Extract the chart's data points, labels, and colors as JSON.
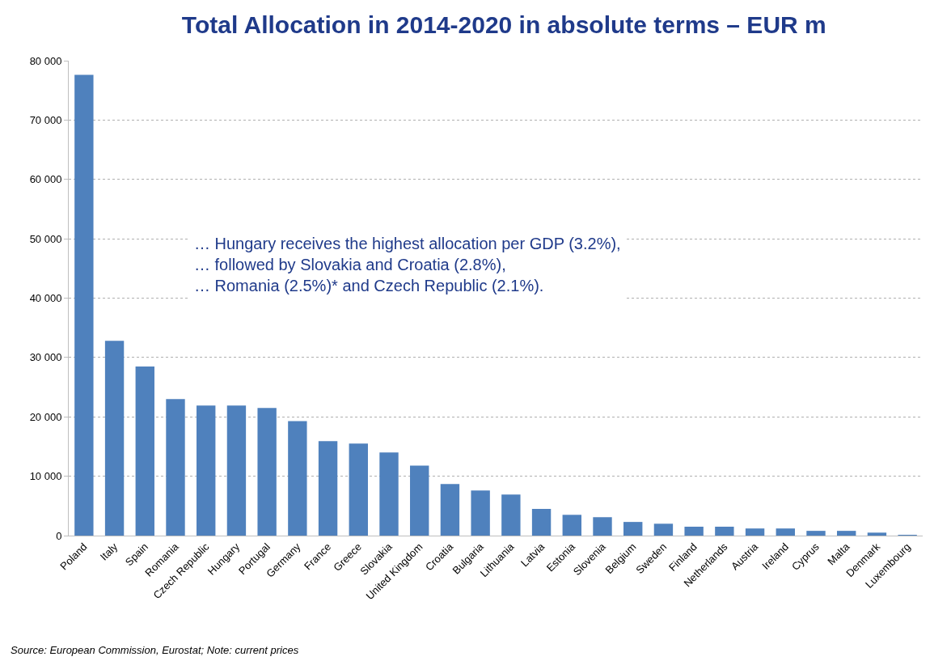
{
  "chart_data": {
    "type": "bar",
    "title": "Total Allocation in 2014-2020 in absolute terms – EUR m",
    "categories": [
      "Poland",
      "Italy",
      "Spain",
      "Romania",
      "Czech Republic",
      "Hungary",
      "Portugal",
      "Germany",
      "France",
      "Greece",
      "Slovakia",
      "United Kingdom",
      "Croatia",
      "Bulgaria",
      "Lithuania",
      "Latvia",
      "Estonia",
      "Slovenia",
      "Belgium",
      "Sweden",
      "Finland",
      "Netherlands",
      "Austria",
      "Ireland",
      "Cyprus",
      "Malta",
      "Denmark",
      "Luxembourg"
    ],
    "values": [
      77600,
      32800,
      28500,
      23000,
      21900,
      21900,
      21500,
      19300,
      15900,
      15500,
      14000,
      11800,
      8700,
      7600,
      6900,
      4500,
      3500,
      3100,
      2300,
      2000,
      1500,
      1500,
      1200,
      1200,
      800,
      800,
      500,
      100
    ],
    "color": "#4f81bd",
    "ylim": [
      0,
      80000
    ],
    "yticks": [
      {
        "value": 0,
        "label": "0"
      },
      {
        "value": 10000,
        "label": "10 000"
      },
      {
        "value": 20000,
        "label": "20 000"
      },
      {
        "value": 30000,
        "label": "30 000"
      },
      {
        "value": 40000,
        "label": "40 000"
      },
      {
        "value": 50000,
        "label": "50 000"
      },
      {
        "value": 60000,
        "label": "60 000"
      },
      {
        "value": 70000,
        "label": "70 000"
      },
      {
        "value": 80000,
        "label": "80 000"
      }
    ],
    "grid": "y",
    "annotations": [
      "… Hungary receives the highest allocation per GDP (3.2%),\n… followed by Slovakia and Croatia (2.8%),\n… Romania (2.5%)* and Czech Republic (2.1%).",
      "Source: European Commission, Eurostat; Note: current prices"
    ]
  }
}
